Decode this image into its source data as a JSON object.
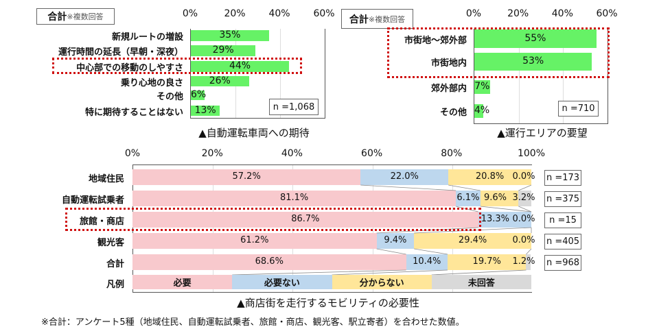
{
  "chart_data": [
    {
      "type": "bar",
      "orientation": "horizontal",
      "header": {
        "label": "合計",
        "note": "※複数回答"
      },
      "title": "▲自動運転車両への期待",
      "categories": [
        "新規ルートの増設",
        "運行時間の延長（早朝・深夜）",
        "中心部での移動のしやすさ",
        "乗り心地の良さ",
        "その他",
        "特に期待することはない"
      ],
      "values": [
        35,
        29,
        44,
        26,
        6,
        13
      ],
      "value_labels": [
        "35%",
        "29%",
        "44%",
        "26%",
        "6%",
        "13%"
      ],
      "xlim": [
        0,
        60
      ],
      "ticks": [
        "0%",
        "20%",
        "40%",
        "60%"
      ],
      "highlighted": [
        "中心部での移動のしやすさ"
      ],
      "sample_size": "n =1,068",
      "color": "#66f266",
      "grid": true
    },
    {
      "type": "bar",
      "orientation": "horizontal",
      "header": {
        "label": "合計",
        "note": "※複数回答"
      },
      "title": "▲運行エリアの要望",
      "categories": [
        "市街地～郊外部",
        "市街地内",
        "郊外部内",
        "その他"
      ],
      "values": [
        55,
        53,
        7,
        4
      ],
      "value_labels": [
        "55%",
        "53%",
        "7%",
        "4%"
      ],
      "xlim": [
        0,
        60
      ],
      "ticks": [
        "0%",
        "20%",
        "40%",
        "60%"
      ],
      "highlighted": [
        "市街地～郊外部",
        "市街地内"
      ],
      "sample_size": "n =710",
      "color": "#66f266",
      "grid": true
    },
    {
      "type": "bar",
      "orientation": "horizontal",
      "stacked": true,
      "title": "▲商店街を走行するモビリティの必要性",
      "categories": [
        "地域住民",
        "自動運転試乗者",
        "旅館・商店",
        "観光客",
        "合計"
      ],
      "sample_sizes": [
        "n =173",
        "n =375",
        "n =15",
        "n =405",
        "n =968"
      ],
      "series": [
        {
          "name": "必要",
          "values": [
            57.2,
            81.1,
            86.7,
            61.2,
            68.6
          ],
          "color": "#f8c9cd"
        },
        {
          "name": "必要ない",
          "values": [
            22.0,
            6.1,
            13.3,
            9.4,
            10.4
          ],
          "color": "#bdd7ee"
        },
        {
          "name": "分からない",
          "values": [
            20.8,
            9.6,
            0.0,
            29.4,
            19.7
          ],
          "color": "#ffe699"
        },
        {
          "name": "未回答",
          "values": [
            0.0,
            3.2,
            0.0,
            0.0,
            1.2
          ],
          "color": "#d9d9d9"
        }
      ],
      "value_labels": [
        [
          "57.2%",
          "22.0%",
          "20.8%",
          "0.0%"
        ],
        [
          "81.1%",
          "6.1%",
          "9.6%",
          "3.2%"
        ],
        [
          "86.7%",
          "13.3%",
          "",
          "0.0%"
        ],
        [
          "61.2%",
          "9.4%",
          "29.4%",
          "0.0%"
        ],
        [
          "68.6%",
          "10.4%",
          "19.7%",
          "1.2%"
        ]
      ],
      "legend_label": "凡例",
      "xlim": [
        0,
        100
      ],
      "ticks": [
        "0%",
        "20%",
        "40%",
        "60%",
        "80%",
        "100%"
      ],
      "highlighted": [
        "旅館・商店"
      ],
      "grid": true
    }
  ],
  "footnote": "※合計：アンケート5種（地域住民、自動運転試乗者、旅館・商店、観光客、駅立寄者）を合わせた数値。"
}
